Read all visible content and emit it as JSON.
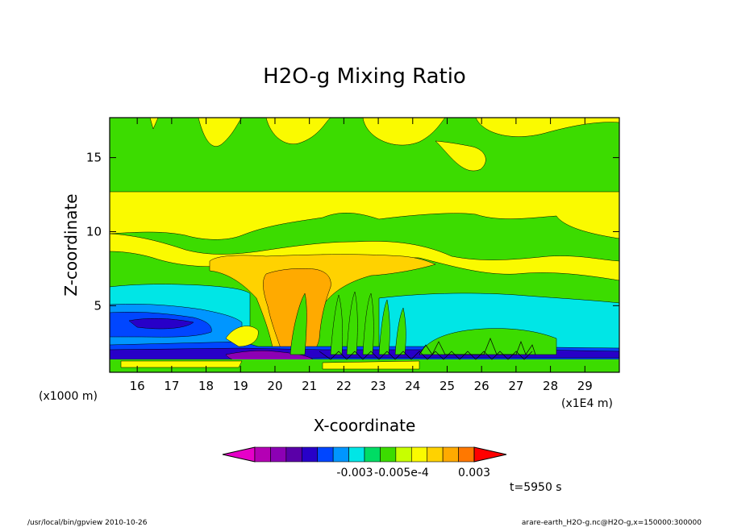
{
  "chart_data": {
    "type": "heatmap",
    "title": "H2O-g Mixing Ratio",
    "xlabel": "X-coordinate",
    "ylabel": "Z-coordinate",
    "x_unit": "(x1E4 m)",
    "y_unit": "(x1000 m)",
    "xlim": [
      15.2,
      30.0
    ],
    "ylim": [
      0.5,
      17.7
    ],
    "x_ticks": [
      "16",
      "17",
      "18",
      "19",
      "20",
      "21",
      "22",
      "23",
      "24",
      "25",
      "26",
      "27",
      "28",
      "29"
    ],
    "y_ticks": [
      "5",
      "10",
      "15"
    ],
    "colorbar": {
      "labels": [
        "-0.003",
        "-0.005e-4",
        "0.003"
      ],
      "colors": [
        "#e600c8",
        "#b400b4",
        "#8c00b4",
        "#5a00a8",
        "#2800c8",
        "#0046ff",
        "#0096ff",
        "#00e6e6",
        "#00dc64",
        "#3cdc00",
        "#c8ff00",
        "#fafa00",
        "#ffd200",
        "#ffaa00",
        "#ff7800",
        "#ff0000"
      ]
    },
    "time_label": "t=5950 s",
    "footer_left": "/usr/local/bin/gpview  2010-10-26",
    "footer_right": "arare-earth_H2O-g.nc@H2O-g,x=150000:300000"
  }
}
